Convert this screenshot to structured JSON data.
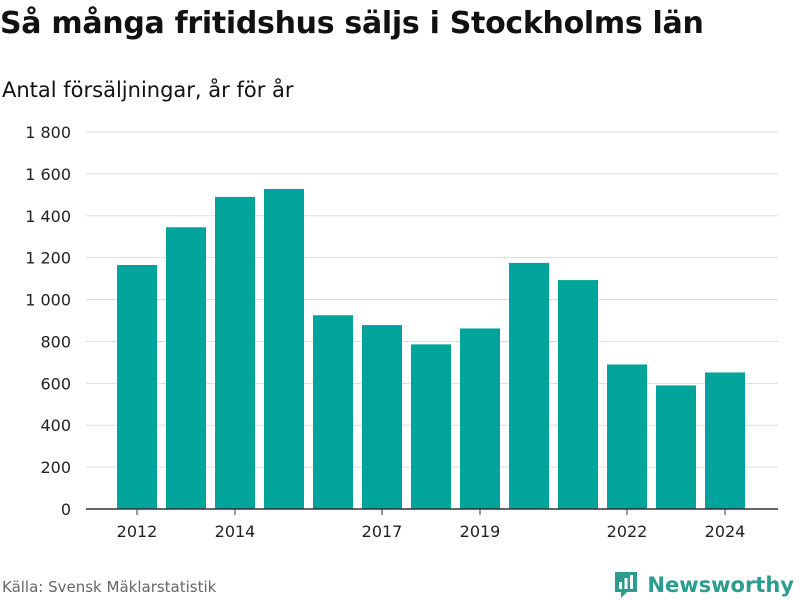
{
  "header": {
    "title": "Så många fritidshus säljs i Stockholms län",
    "subtitle": "Antal försäljningar, år för år"
  },
  "footer": {
    "source": "Källa: Svensk Mäklarstatistik",
    "brand": "Newsworthy",
    "brand_icon": "newsworthy-logo-icon"
  },
  "colors": {
    "bar": "#00a49a",
    "grid": "#dddddd",
    "axis": "#333333",
    "brand": "#2a9d8f"
  },
  "chart_data": {
    "type": "bar",
    "title": "Så många fritidshus säljs i Stockholms län",
    "subtitle": "Antal försäljningar, år för år",
    "categories": [
      2012,
      2013,
      2014,
      2015,
      2016,
      2017,
      2018,
      2019,
      2020,
      2021,
      2022,
      2023,
      2024
    ],
    "values": [
      1165,
      1345,
      1490,
      1528,
      925,
      878,
      786,
      862,
      1175,
      1093,
      690,
      590,
      652
    ],
    "x_tick_labels": [
      "2012",
      "2014",
      "2017",
      "2019",
      "2022",
      "2024"
    ],
    "y_ticks": [
      0,
      200,
      400,
      600,
      800,
      1000,
      1200,
      1400,
      1600,
      1800
    ],
    "y_tick_labels": [
      "0",
      "200",
      "400",
      "600",
      "800",
      "1 000",
      "1 200",
      "1 400",
      "1 600",
      "1 800"
    ],
    "ylim": [
      0,
      1800
    ],
    "grid": true,
    "legend": "none",
    "xlabel": "",
    "ylabel": ""
  }
}
